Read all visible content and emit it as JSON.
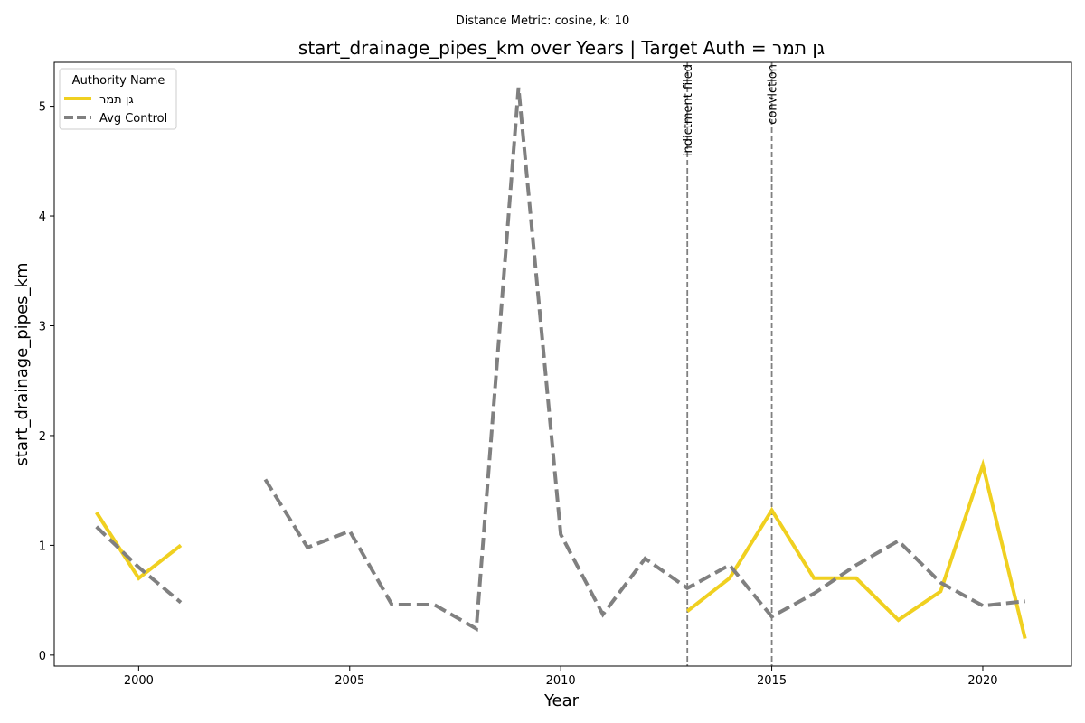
{
  "chart_data": {
    "type": "line",
    "suptitle": "Distance Metric: cosine, k: 10",
    "title": "start_drainage_pipes_km over Years | Target Auth = גן תמר",
    "xlabel": "Year",
    "ylabel": "start_drainage_pipes_km",
    "xlim": [
      1998.0,
      2022.1
    ],
    "ylim": [
      -0.1,
      5.4
    ],
    "xticks": [
      2000,
      2005,
      2010,
      2015,
      2020
    ],
    "yticks": [
      0,
      1,
      2,
      3,
      4,
      5
    ],
    "grid": false,
    "legend": {
      "title": "Authority Name",
      "placement": "upper left"
    },
    "series": [
      {
        "name": "גן תמר",
        "color": "#f0d020",
        "style": "solid",
        "points": [
          [
            1999,
            1.3
          ],
          [
            2000,
            0.7
          ],
          [
            2001,
            1.0
          ],
          [
            2002,
            null
          ],
          [
            2003,
            null
          ],
          [
            2004,
            null
          ],
          [
            2005,
            null
          ],
          [
            2006,
            null
          ],
          [
            2007,
            null
          ],
          [
            2008,
            null
          ],
          [
            2009,
            null
          ],
          [
            2010,
            null
          ],
          [
            2011,
            null
          ],
          [
            2012,
            null
          ],
          [
            2013,
            0.4
          ],
          [
            2014,
            0.7
          ],
          [
            2015,
            1.32
          ],
          [
            2016,
            0.7
          ],
          [
            2017,
            0.7
          ],
          [
            2018,
            0.32
          ],
          [
            2019,
            0.58
          ],
          [
            2020,
            1.73
          ],
          [
            2021,
            0.15
          ]
        ]
      },
      {
        "name": "Avg Control",
        "color": "#808080",
        "style": "dashed",
        "points": [
          [
            1999,
            1.17
          ],
          [
            2000,
            0.8
          ],
          [
            2001,
            0.48
          ],
          [
            2002,
            null
          ],
          [
            2003,
            1.6
          ],
          [
            2004,
            0.98
          ],
          [
            2005,
            1.13
          ],
          [
            2006,
            0.46
          ],
          [
            2007,
            0.46
          ],
          [
            2008,
            0.24
          ],
          [
            2009,
            5.17
          ],
          [
            2010,
            1.1
          ],
          [
            2011,
            0.37
          ],
          [
            2012,
            0.88
          ],
          [
            2013,
            0.61
          ],
          [
            2014,
            0.82
          ],
          [
            2015,
            0.35
          ],
          [
            2016,
            0.56
          ],
          [
            2017,
            0.82
          ],
          [
            2018,
            1.04
          ],
          [
            2019,
            0.66
          ],
          [
            2020,
            0.45
          ],
          [
            2021,
            0.49
          ]
        ]
      }
    ],
    "vlines": [
      {
        "x": 2013,
        "label": "indictment filed",
        "color": "#808080"
      },
      {
        "x": 2015,
        "label": "conviction",
        "color": "#808080"
      }
    ]
  }
}
